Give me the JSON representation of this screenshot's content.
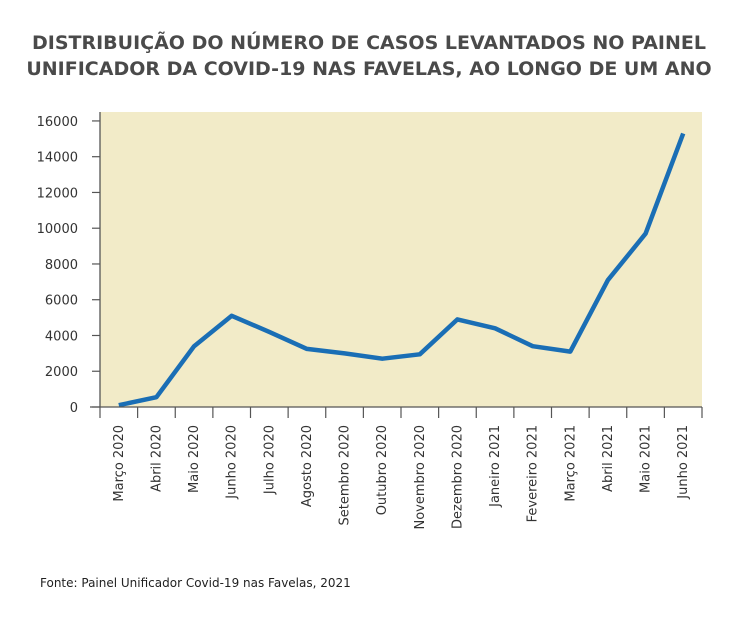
{
  "chart_data": {
    "type": "line",
    "title_line1": "DISTRIBUIÇÃO DO NÚMERO DE CASOS LEVANTADOS NO PAINEL",
    "title_line2": "UNIFICADOR DA COVID-19 NAS FAVELAS, AO LONGO DE UM ANO",
    "categories": [
      "Março 2020",
      "Abril 2020",
      "Maio 2020",
      "Junho 2020",
      "Julho 2020",
      "Agosto 2020",
      "Setembro 2020",
      "Outubro 2020",
      "Novembro 2020",
      "Dezembro 2020",
      "Janeiro 2021",
      "Fevereiro 2021",
      "Março 2021",
      "Abril 2021",
      "Maio 2021",
      "Junho 2021"
    ],
    "values": [
      100,
      550,
      3400,
      5100,
      4200,
      3250,
      3000,
      2700,
      2950,
      4900,
      4400,
      3400,
      3100,
      7100,
      9700,
      15300
    ],
    "yticks": [
      0,
      2000,
      4000,
      6000,
      8000,
      10000,
      12000,
      14000,
      16000
    ],
    "ylim": [
      0,
      16500
    ],
    "colors": {
      "line": "#1a6eb5",
      "plot_background": "#f2ebc8",
      "axis": "#555555"
    },
    "grid": false,
    "legend": "none"
  },
  "source": "Fonte: Painel Unificador Covid-19 nas Favelas, 2021"
}
